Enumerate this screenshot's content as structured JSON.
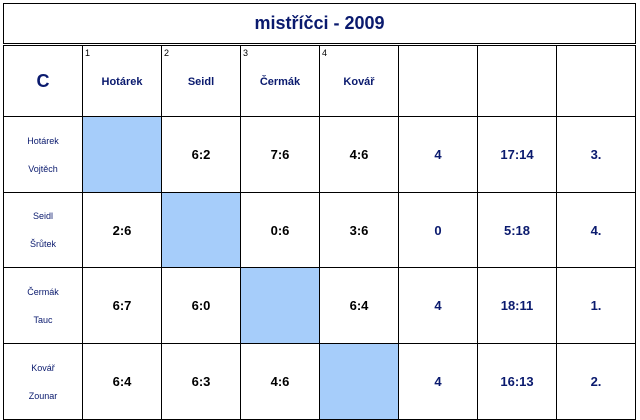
{
  "title": "mistříčci - 2009",
  "group": "C",
  "columns": [
    {
      "num": "1",
      "name": "Hotárek"
    },
    {
      "num": "2",
      "name": "Seidl"
    },
    {
      "num": "3",
      "name": "Čermák"
    },
    {
      "num": "4",
      "name": "Kovář"
    }
  ],
  "rows": [
    {
      "player1": "Hotárek",
      "player2": "Vojtěch",
      "results": [
        "",
        "6:2",
        "7:6",
        "4:6"
      ],
      "points": "4",
      "games": "17:14",
      "rank": "3."
    },
    {
      "player1": "Seidl",
      "player2": "Šrůtek",
      "results": [
        "2:6",
        "",
        "0:6",
        "3:6"
      ],
      "points": "0",
      "games": "5:18",
      "rank": "4."
    },
    {
      "player1": "Čermák",
      "player2": "Tauc",
      "results": [
        "6:7",
        "6:0",
        "",
        "6:4"
      ],
      "points": "4",
      "games": "18:11",
      "rank": "1."
    },
    {
      "player1": "Kovář",
      "player2": "Zounar",
      "results": [
        "6:4",
        "6:3",
        "4:6",
        ""
      ],
      "points": "4",
      "games": "16:13",
      "rank": "2."
    }
  ],
  "colors": {
    "title": "#0a1a6e",
    "diagonal": "#a6cdfa"
  }
}
